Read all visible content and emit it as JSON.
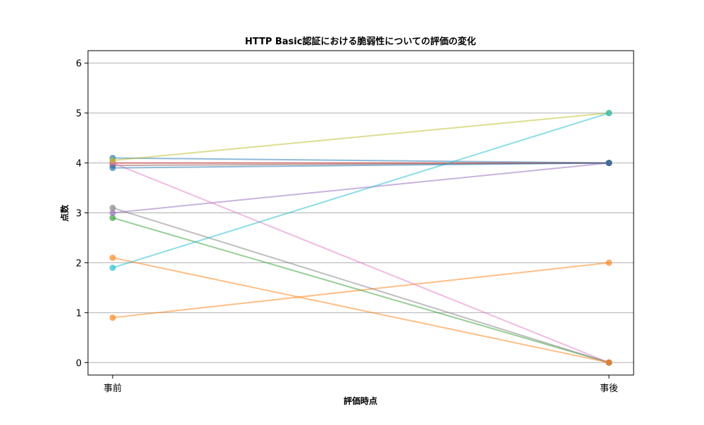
{
  "chart_data": {
    "type": "line",
    "title": "HTTP Basic認証における脆弱性についての評価の変化",
    "xlabel": "評価時点",
    "ylabel": "点数",
    "categories": [
      "事前",
      "事後"
    ],
    "ylim": [
      -0.25,
      6.25
    ],
    "yticks": [
      0,
      1,
      2,
      3,
      4,
      5,
      6
    ],
    "grid": "horizontal",
    "series": [
      {
        "values": [
          4.1,
          4.0
        ],
        "color": "#1f77b4"
      },
      {
        "values": [
          0.9,
          2.0
        ],
        "color": "#ff7f0e"
      },
      {
        "values": [
          2.9,
          0.0
        ],
        "color": "#2ca02c"
      },
      {
        "values": [
          4.0,
          4.0
        ],
        "color": "#d62728"
      },
      {
        "values": [
          3.0,
          4.0
        ],
        "color": "#9467bd"
      },
      {
        "values": [
          3.95,
          4.0
        ],
        "color": "#8c564b"
      },
      {
        "values": [
          4.0,
          0.0
        ],
        "color": "#e377c2"
      },
      {
        "values": [
          3.1,
          0.0
        ],
        "color": "#7f7f7f"
      },
      {
        "values": [
          4.05,
          5.0
        ],
        "color": "#bcbd22"
      },
      {
        "values": [
          1.9,
          5.0
        ],
        "color": "#17becf"
      },
      {
        "values": [
          2.1,
          0.0
        ],
        "color": "#ff7f0e"
      },
      {
        "values": [
          3.9,
          4.0
        ],
        "color": "#1f77b4"
      }
    ]
  }
}
